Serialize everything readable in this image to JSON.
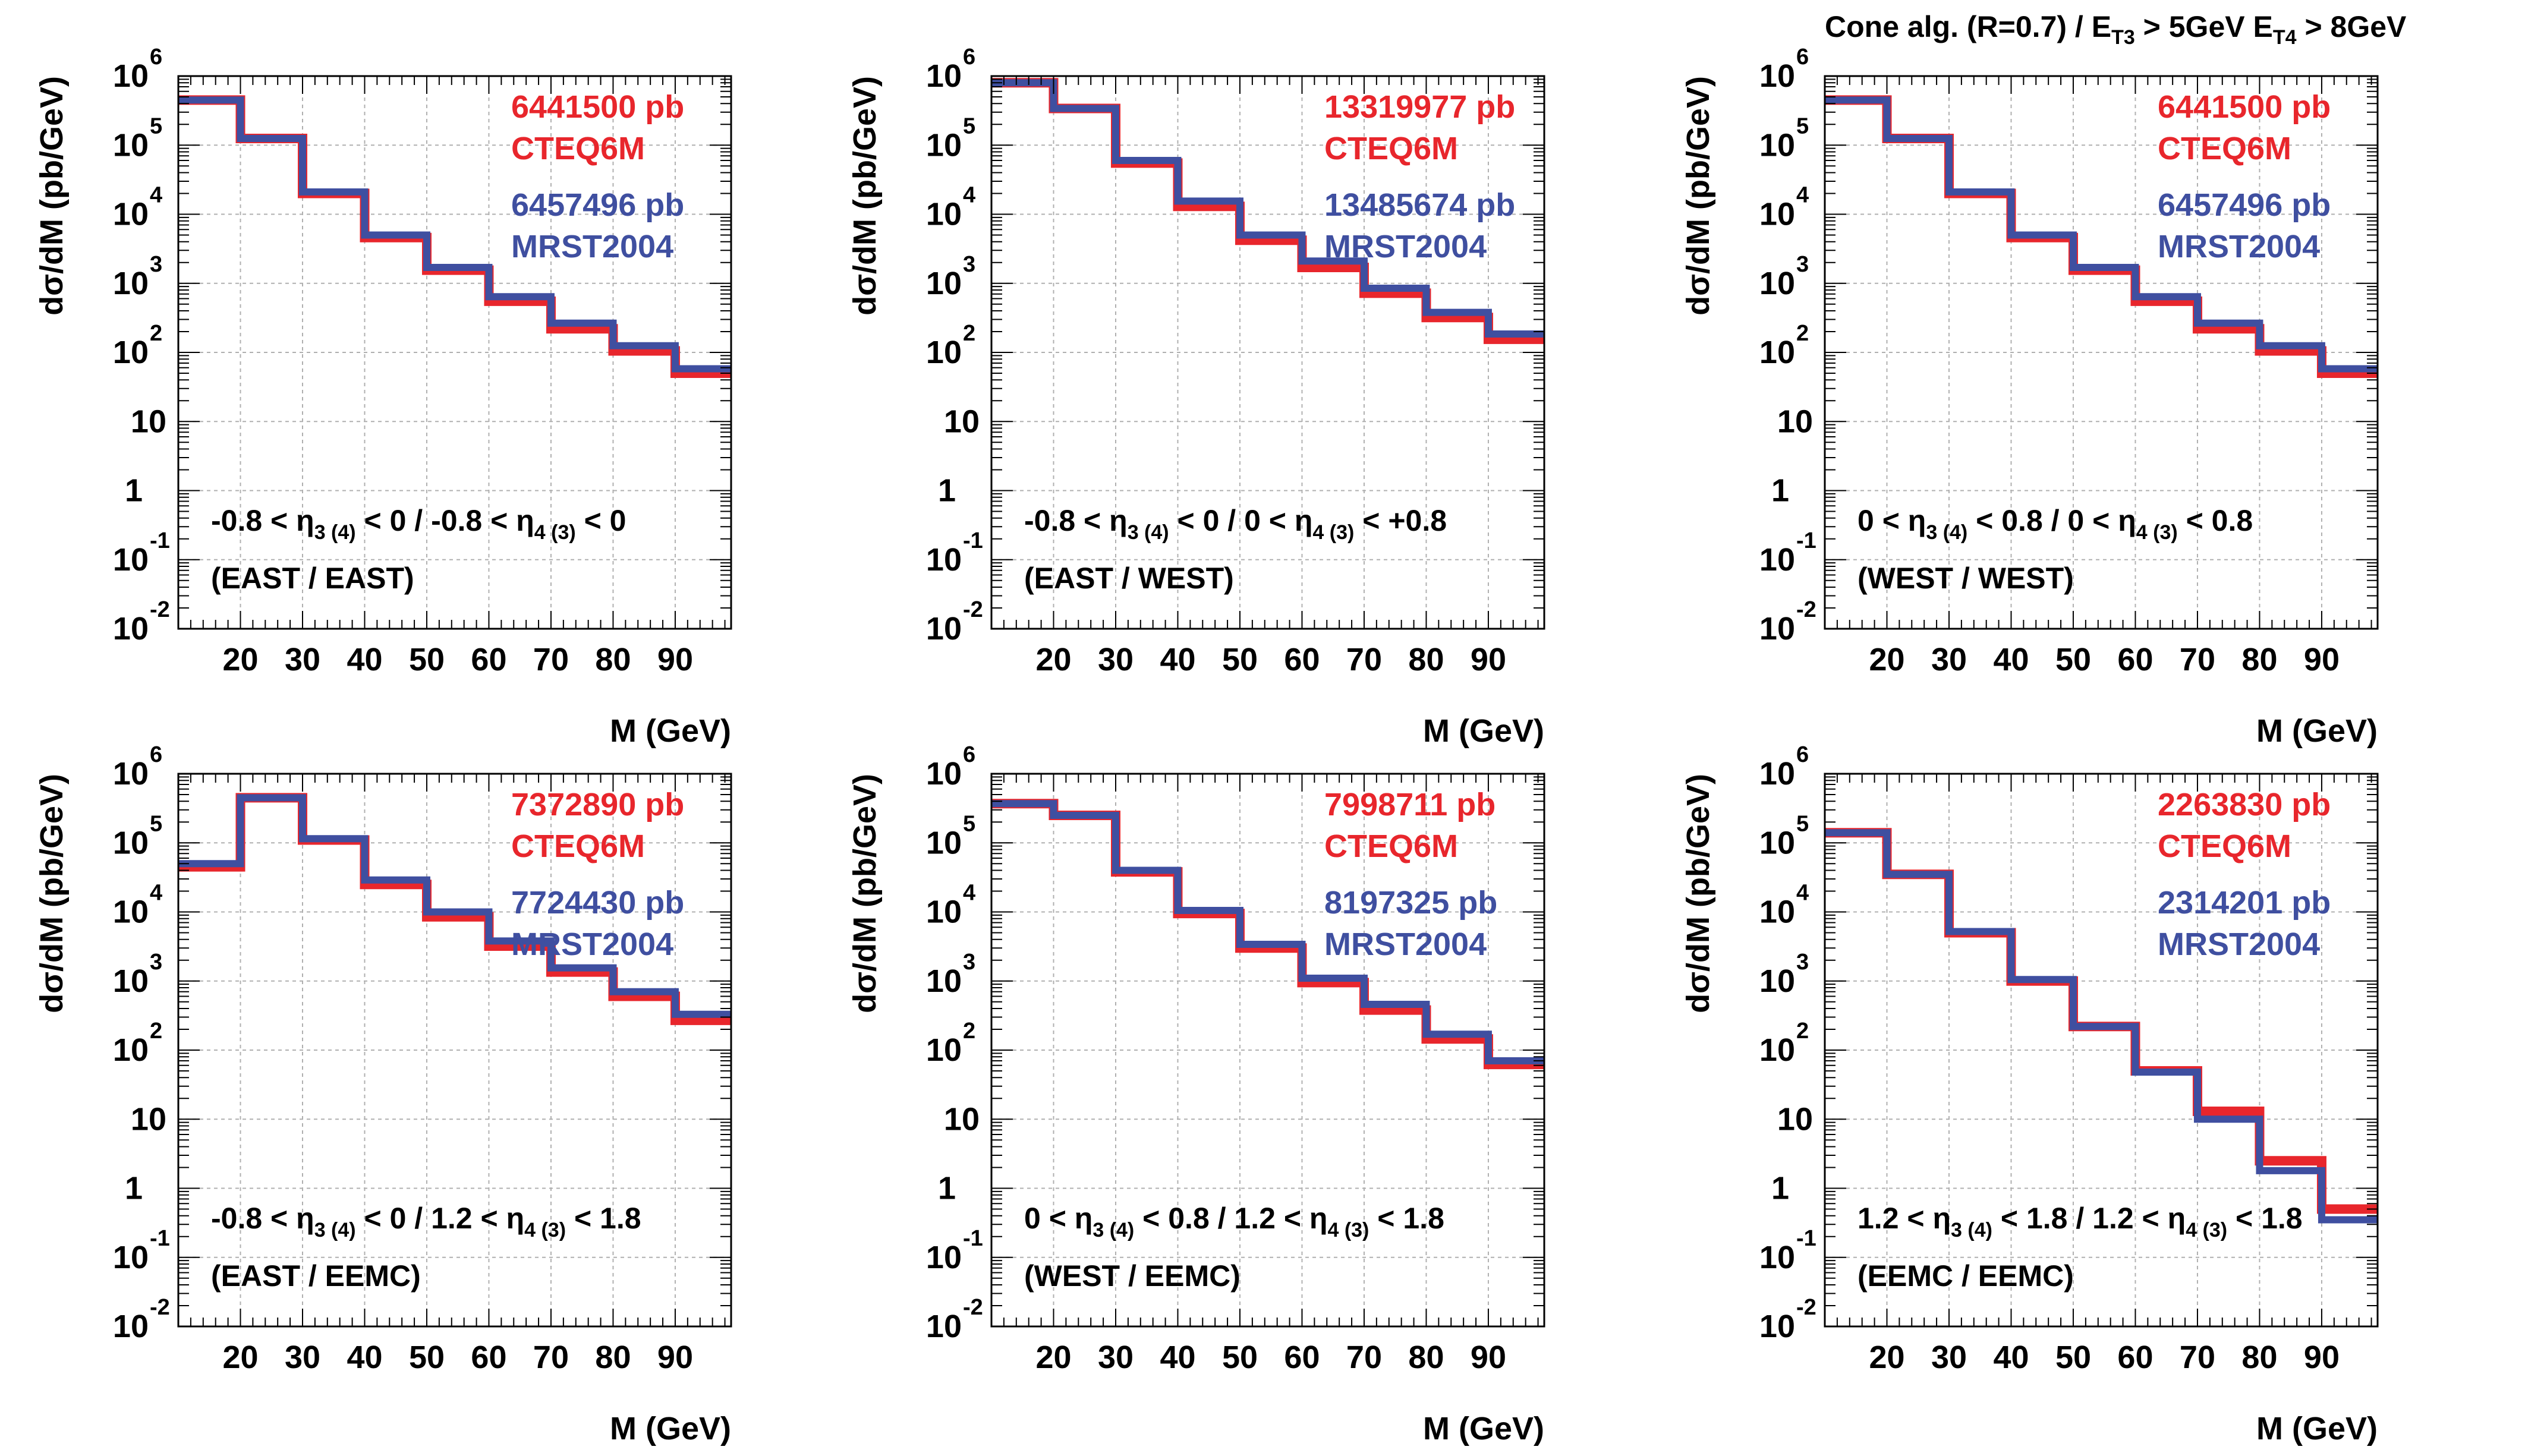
{
  "figure": {
    "title_parts": {
      "text1": "Cone alg. (R=0.7) / ",
      "e3": "E",
      "e3sub": "T3",
      "cut3": " > 5GeV",
      "e4": "E",
      "e4sub": "T4",
      "cut4": " > 8GeV"
    }
  },
  "colors": {
    "cteq": "#e8262c",
    "mrst": "#3f4fa0",
    "grid": "#b0b0b0",
    "axis": "#000000",
    "text": "#000000"
  },
  "chart_data": [
    {
      "type": "histogram",
      "ylabel": "dσ/dM (pb/GeV)",
      "xlabel": "M (GeV)",
      "xlim": [
        10,
        99
      ],
      "ylog": true,
      "ylim_exp": [
        -2,
        6
      ],
      "grid": true,
      "xticks": [
        20,
        30,
        40,
        50,
        60,
        70,
        80,
        90
      ],
      "bin_edges": [
        10,
        20,
        30,
        40,
        50,
        60,
        70,
        80,
        90,
        99
      ],
      "annot": {
        "n1": "-0.8 <",
        "a": "3 (4)",
        "n2": "< 0 / -0.8 <",
        "b": "4 (3)",
        "n3": "< 0",
        "region": "(EAST / EAST)"
      },
      "series": [
        {
          "name": "CTEQ6M",
          "total": "6441500 pb",
          "values": [
            450000,
            125000,
            20000,
            4600,
            1550,
            550,
            220,
            105,
            50
          ]
        },
        {
          "name": "MRST2004",
          "total": "6457496 pb",
          "values": [
            450000,
            125000,
            21000,
            5000,
            1700,
            640,
            265,
            125,
            58
          ]
        }
      ]
    },
    {
      "type": "histogram",
      "ylabel": "dσ/dM (pb/GeV)",
      "xlabel": "M (GeV)",
      "xlim": [
        10,
        99
      ],
      "ylog": true,
      "ylim_exp": [
        -2,
        6
      ],
      "grid": true,
      "xticks": [
        20,
        30,
        40,
        50,
        60,
        70,
        80,
        90
      ],
      "bin_edges": [
        10,
        20,
        30,
        40,
        50,
        60,
        70,
        80,
        90,
        99
      ],
      "annot": {
        "n1": "-0.8 <",
        "a": "3 (4)",
        "n2": "< 0 / 0 <",
        "b": "4 (3)",
        "n3": "< +0.8",
        "region": "(EAST / WEST)"
      },
      "series": [
        {
          "name": "CTEQ6M",
          "total": "13319977 pb",
          "values": [
            800000,
            340000,
            55000,
            13000,
            4200,
            1700,
            720,
            320,
            155
          ]
        },
        {
          "name": "MRST2004",
          "total": "13485674 pb",
          "values": [
            800000,
            340000,
            60000,
            15500,
            5000,
            2100,
            850,
            380,
            185
          ]
        }
      ]
    },
    {
      "type": "histogram",
      "ylabel": "dσ/dM (pb/GeV)",
      "xlabel": "M (GeV)",
      "xlim": [
        10,
        99
      ],
      "ylog": true,
      "ylim_exp": [
        -2,
        6
      ],
      "grid": true,
      "xticks": [
        20,
        30,
        40,
        50,
        60,
        70,
        80,
        90
      ],
      "bin_edges": [
        10,
        20,
        30,
        40,
        50,
        60,
        70,
        80,
        90,
        99
      ],
      "annot": {
        "n1": "0 <",
        "a": "3 (4)",
        "n2": "< 0.8 / 0 <",
        "b": "4 (3)",
        "n3": "< 0.8",
        "region": "(WEST / WEST)"
      },
      "series": [
        {
          "name": "CTEQ6M",
          "total": "6441500 pb",
          "values": [
            450000,
            125000,
            20000,
            4600,
            1550,
            550,
            220,
            105,
            50
          ]
        },
        {
          "name": "MRST2004",
          "total": "6457496 pb",
          "values": [
            450000,
            125000,
            21000,
            5000,
            1700,
            640,
            265,
            125,
            58
          ]
        }
      ]
    },
    {
      "type": "histogram",
      "ylabel": "dσ/dM (pb/GeV)",
      "xlabel": "M (GeV)",
      "xlim": [
        10,
        99
      ],
      "ylog": true,
      "ylim_exp": [
        -2,
        6
      ],
      "grid": true,
      "xticks": [
        20,
        30,
        40,
        50,
        60,
        70,
        80,
        90
      ],
      "bin_edges": [
        10,
        20,
        30,
        40,
        50,
        60,
        70,
        80,
        90,
        99
      ],
      "annot": {
        "n1": "-0.8 <",
        "a": "3 (4)",
        "n2": "< 0 / 1.2 <",
        "b": "4 (3)",
        "n3": "< 1.8",
        "region": "(EAST / EEMC)"
      },
      "series": [
        {
          "name": "CTEQ6M",
          "total": "7372890 pb",
          "values": [
            45000,
            450000,
            110000,
            25000,
            8500,
            3200,
            1350,
            600,
            270
          ]
        },
        {
          "name": "MRST2004",
          "total": "7724430 pb",
          "values": [
            50000,
            450000,
            115000,
            29000,
            10000,
            3800,
            1550,
            700,
            330
          ]
        }
      ]
    },
    {
      "type": "histogram",
      "ylabel": "dσ/dM (pb/GeV)",
      "xlabel": "M (GeV)",
      "xlim": [
        10,
        99
      ],
      "ylog": true,
      "ylim_exp": [
        -2,
        6
      ],
      "grid": true,
      "xticks": [
        20,
        30,
        40,
        50,
        60,
        70,
        80,
        90
      ],
      "bin_edges": [
        10,
        20,
        30,
        40,
        50,
        60,
        70,
        80,
        90,
        99
      ],
      "annot": {
        "n1": "0 <",
        "a": "3 (4)",
        "n2": "< 0.8 / 1.2 <",
        "b": "4 (3)",
        "n3": "< 1.8",
        "region": "(WEST / EEMC)"
      },
      "series": [
        {
          "name": "CTEQ6M",
          "total": "7998711 pb",
          "values": [
            370000,
            250000,
            38000,
            9500,
            3000,
            950,
            380,
            145,
            62
          ]
        },
        {
          "name": "MRST2004",
          "total": "8197325 pb",
          "values": [
            370000,
            250000,
            40000,
            10500,
            3400,
            1100,
            460,
            170,
            70
          ]
        }
      ]
    },
    {
      "type": "histogram",
      "ylabel": "dσ/dM (pb/GeV)",
      "xlabel": "M (GeV)",
      "xlim": [
        10,
        99
      ],
      "ylog": true,
      "ylim_exp": [
        -2,
        6
      ],
      "grid": true,
      "xticks": [
        20,
        30,
        40,
        50,
        60,
        70,
        80,
        90
      ],
      "bin_edges": [
        10,
        20,
        30,
        40,
        50,
        60,
        70,
        80,
        90,
        99
      ],
      "annot": {
        "n1": "1.2 <",
        "a": "3 (4)",
        "n2": "< 1.8 / 1.2 <",
        "b": "4 (3)",
        "n3": "< 1.8",
        "region": "(EEMC / EEMC)"
      },
      "series": [
        {
          "name": "CTEQ6M",
          "total": "2263830 pb",
          "values": [
            140000,
            35000,
            5000,
            1000,
            220,
            50,
            13,
            2.5,
            0.5
          ]
        },
        {
          "name": "MRST2004",
          "total": "2314201 pb",
          "values": [
            140000,
            35000,
            5200,
            1050,
            220,
            48,
            10,
            1.8,
            0.35
          ]
        }
      ]
    }
  ]
}
